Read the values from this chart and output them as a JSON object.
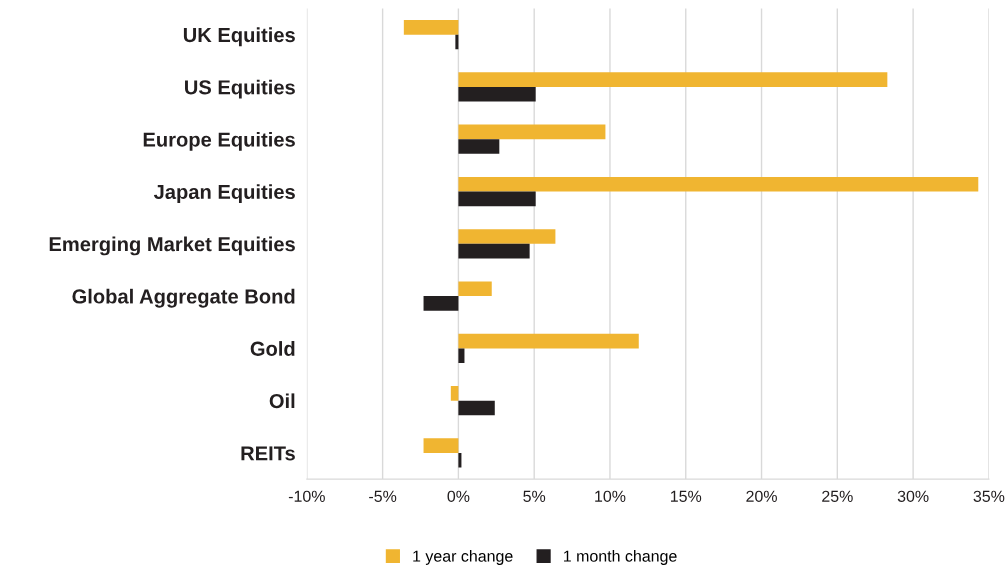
{
  "chart_data": {
    "type": "bar",
    "orientation": "horizontal",
    "categories": [
      "UK Equities",
      "US Equities",
      "Europe Equities",
      "Japan Equities",
      "Emerging Market Equities",
      "Global Aggregate Bond",
      "Gold",
      "Oil",
      "REITs"
    ],
    "series": [
      {
        "name": "1 year change",
        "color": "#f0b531",
        "values": [
          -3.6,
          28.3,
          9.7,
          34.3,
          6.4,
          2.2,
          11.9,
          -0.5,
          -2.3
        ]
      },
      {
        "name": "1 month change",
        "color": "#231f20",
        "values": [
          -0.2,
          5.1,
          2.7,
          5.1,
          4.7,
          -2.3,
          0.4,
          2.4,
          0.2
        ]
      }
    ],
    "xlim": [
      -10,
      35
    ],
    "xticks": [
      {
        "value": -10,
        "label": "-10%"
      },
      {
        "value": -5,
        "label": "-5%"
      },
      {
        "value": 0,
        "label": "0%"
      },
      {
        "value": 5,
        "label": "5%"
      },
      {
        "value": 10,
        "label": "10%"
      },
      {
        "value": 15,
        "label": "15%"
      },
      {
        "value": 20,
        "label": "20%"
      },
      {
        "value": 25,
        "label": "25%"
      },
      {
        "value": 30,
        "label": "30%"
      },
      {
        "value": 35,
        "label": "35%"
      }
    ],
    "grid": "x",
    "legend": "bottom"
  }
}
